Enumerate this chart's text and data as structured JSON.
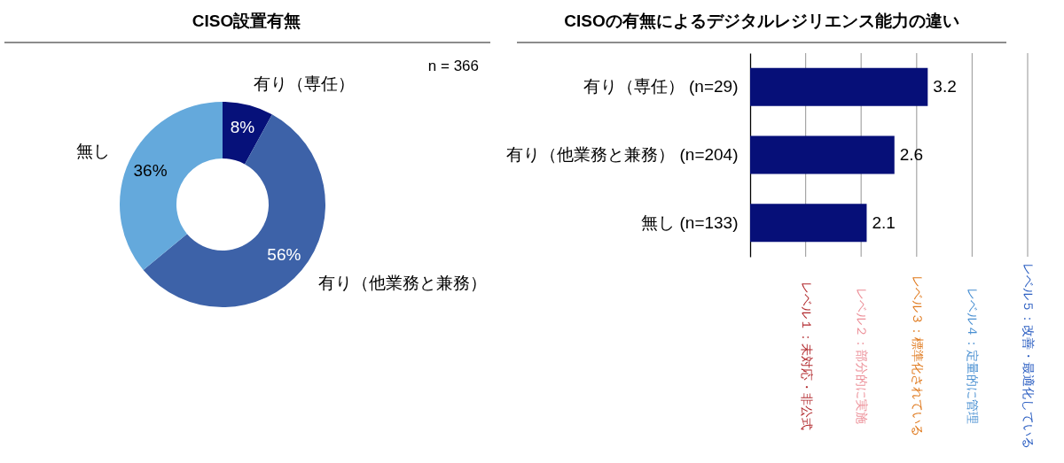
{
  "chart_data": [
    {
      "type": "donut",
      "title": "CISO設置有無",
      "categories": [
        "有り（専任）",
        "有り（他業務と兼務）",
        "無し"
      ],
      "values": [
        8,
        56,
        36
      ],
      "colors": [
        "#06117a",
        "#3d62a8",
        "#64a9dc"
      ],
      "value_labels": [
        "8%",
        "56%",
        "36%"
      ],
      "annotations": [
        "n = 366"
      ]
    },
    {
      "type": "bar",
      "orientation": "horizontal",
      "title": "CISOの有無によるデジタルレジリエンス能力の違い",
      "categories": [
        "有り（専任） (n=29)",
        "有り（他業務と兼務） (n=204)",
        "無し (n=133)"
      ],
      "values": [
        3.2,
        2.6,
        2.1
      ],
      "color": "#060f78",
      "data_labels": true,
      "xlim": [
        0,
        5
      ],
      "ref_lines": [
        {
          "axis": "x",
          "value": 1,
          "label": "レベル１：未対応・非公式",
          "color": "#a6a6a6"
        },
        {
          "axis": "x",
          "value": 2,
          "label": "レベル２：部分的に実施",
          "color": "#a6a6a6"
        },
        {
          "axis": "x",
          "value": 3,
          "label": "レベル３：標準化されている",
          "color": "#a6a6a6"
        },
        {
          "axis": "x",
          "value": 4,
          "label": "レベル４：定量的に管理",
          "color": "#a6a6a6"
        },
        {
          "axis": "x",
          "value": 5,
          "label": "レベル５：改善・最適化している",
          "color": "#a6a6a6"
        }
      ]
    }
  ]
}
